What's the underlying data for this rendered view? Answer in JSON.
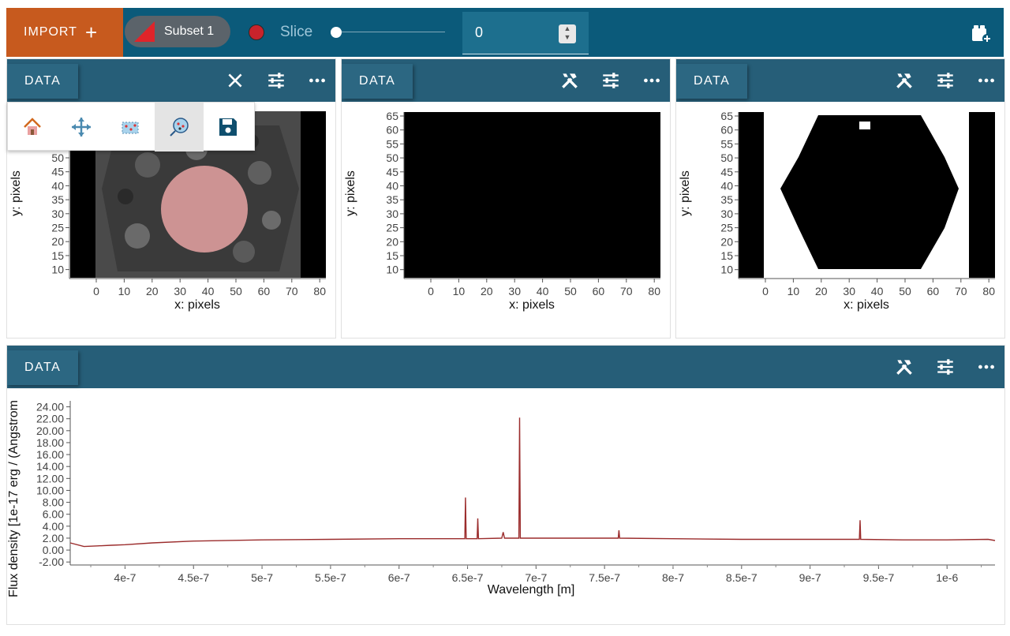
{
  "toolbar": {
    "import_label": "IMPORT",
    "subset_label": "Subset 1",
    "slice_label": "Slice",
    "slice_value": "0",
    "slider_fraction": 0.0
  },
  "viewers": {
    "image1": {
      "tab_label": "DATA",
      "icons": [
        "close-icon",
        "sliders-icon",
        "more-icon"
      ],
      "toolbar_icons": [
        "home-icon",
        "pan-icon",
        "box-select-icon",
        "circle-select-icon",
        "save-icon"
      ],
      "active_tool": "circle-select-icon",
      "xlabel": "x: pixels",
      "ylabel": "y: pixels",
      "xticks": [
        "0",
        "10",
        "20",
        "30",
        "40",
        "50",
        "60",
        "70",
        "80"
      ],
      "yticks": [
        "50",
        "45",
        "40",
        "35",
        "30",
        "25",
        "20",
        "15",
        "10"
      ]
    },
    "image2": {
      "tab_label": "DATA",
      "icons": [
        "tools-icon",
        "sliders-icon",
        "more-icon"
      ],
      "xlabel": "x: pixels",
      "ylabel": "y: pixels",
      "xticks": [
        "0",
        "10",
        "20",
        "30",
        "40",
        "50",
        "60",
        "70",
        "80"
      ],
      "yticks": [
        "65",
        "60",
        "55",
        "50",
        "45",
        "40",
        "35",
        "30",
        "25",
        "20",
        "15",
        "10"
      ]
    },
    "image3": {
      "tab_label": "DATA",
      "icons": [
        "tools-icon",
        "sliders-icon",
        "more-icon"
      ],
      "xlabel": "x: pixels",
      "ylabel": "y: pixels",
      "xticks": [
        "0",
        "10",
        "20",
        "30",
        "40",
        "50",
        "60",
        "70",
        "80"
      ],
      "yticks": [
        "65",
        "60",
        "55",
        "50",
        "45",
        "40",
        "35",
        "30",
        "25",
        "20",
        "15",
        "10"
      ]
    },
    "spectrum": {
      "tab_label": "DATA",
      "icons": [
        "tools-icon",
        "sliders-icon",
        "more-icon"
      ],
      "xlabel": "Wavelength [m]",
      "ylabel": "Flux density [1e-17 erg / (Angstrom",
      "xticks": [
        "4e-7",
        "4.5e-7",
        "5e-7",
        "5.5e-7",
        "6e-7",
        "6.5e-7",
        "7e-7",
        "7.5e-7",
        "8e-7",
        "8.5e-7",
        "9e-7",
        "9.5e-7",
        "1e-6"
      ],
      "yticks": [
        "24.00",
        "22.00",
        "20.00",
        "18.00",
        "16.00",
        "14.00",
        "12.00",
        "10.00",
        "8.00",
        "6.00",
        "4.00",
        "2.00",
        "0.00",
        "-2.00"
      ]
    }
  },
  "chart_data": {
    "type": "line",
    "xlabel": "Wavelength [m]",
    "ylabel": "Flux density [1e-17 erg / (Angstrom",
    "xlim": [
      3.6e-07,
      1.035e-06
    ],
    "ylim": [
      -2.5,
      25
    ],
    "series": [
      {
        "color": "#9b2c2c",
        "x": [
          3.6e-07,
          3.7e-07,
          3.8e-07,
          3.9e-07,
          4e-07,
          4.2e-07,
          4.5e-07,
          5e-07,
          5.5e-07,
          6e-07,
          6.48e-07,
          6.485e-07,
          6.49e-07,
          6.57e-07,
          6.575e-07,
          6.58e-07,
          6.75e-07,
          6.76e-07,
          6.77e-07,
          6.875e-07,
          6.88e-07,
          6.885e-07,
          7.2e-07,
          7.6e-07,
          7.605e-07,
          7.61e-07,
          8e-07,
          8.5e-07,
          9e-07,
          9.36e-07,
          9.365e-07,
          9.37e-07,
          9.7e-07,
          1e-06,
          1.03e-06,
          1.035e-06
        ],
        "y": [
          1.2,
          0.6,
          0.7,
          0.8,
          0.9,
          1.2,
          1.5,
          1.7,
          1.8,
          1.9,
          1.9,
          8.8,
          1.9,
          1.9,
          5.3,
          1.9,
          2.0,
          3.0,
          2.0,
          2.0,
          22.2,
          2.0,
          2.0,
          2.0,
          3.3,
          2.0,
          1.9,
          1.8,
          1.8,
          1.8,
          5.0,
          1.8,
          1.7,
          1.7,
          1.8,
          1.6
        ]
      }
    ]
  }
}
